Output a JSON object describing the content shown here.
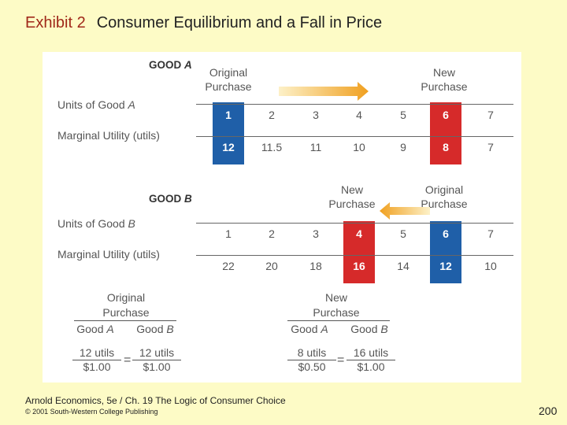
{
  "title": {
    "exhibit": "Exhibit 2",
    "text": "Consumer Equilibrium and a Fall in Price"
  },
  "good_a": {
    "heading": "GOOD A",
    "units_label_prefix": "Units of Good ",
    "units_label_var": "A",
    "mu_label": "Marginal Utility (utils)",
    "units": [
      "1",
      "2",
      "3",
      "4",
      "5",
      "6",
      "7"
    ],
    "mu": [
      "12",
      "11.5",
      "11",
      "10",
      "9",
      "8",
      "7"
    ],
    "original_caption": [
      "Original",
      "Purchase"
    ],
    "new_caption": [
      "New",
      "Purchase"
    ]
  },
  "good_b": {
    "heading": "GOOD B",
    "units_label_prefix": "Units of Good ",
    "units_label_var": "B",
    "mu_label": "Marginal Utility (utils)",
    "units": [
      "1",
      "2",
      "3",
      "4",
      "5",
      "6",
      "7"
    ],
    "mu": [
      "22",
      "20",
      "18",
      "16",
      "14",
      "12",
      "10"
    ],
    "new_caption": [
      "New",
      "Purchase"
    ],
    "original_caption": [
      "Original",
      "Purchase"
    ]
  },
  "equations": {
    "original": {
      "caption": [
        "Original",
        "Purchase"
      ],
      "label_a": "Good A",
      "label_b": "Good B",
      "num_a": "12 utils",
      "den_a": "$1.00",
      "num_b": "12 utils",
      "den_b": "$1.00",
      "sign": "="
    },
    "new": {
      "caption": [
        "New",
        "Purchase"
      ],
      "label_a": "Good A",
      "label_b": "Good B",
      "num_a": "8 utils",
      "den_a": "$0.50",
      "num_b": "16 utils",
      "den_b": "$1.00",
      "sign": "="
    }
  },
  "footer": {
    "source": "Arnold Economics, 5e / Ch. 19  The Logic of Consumer Choice",
    "copyright": "© 2001 South-Western College Publishing",
    "page": "200"
  },
  "colors": {
    "red": "#d62a2a",
    "blue": "#1f5fa8",
    "arrow": "#f0a020",
    "background": "#fdfbc6"
  }
}
